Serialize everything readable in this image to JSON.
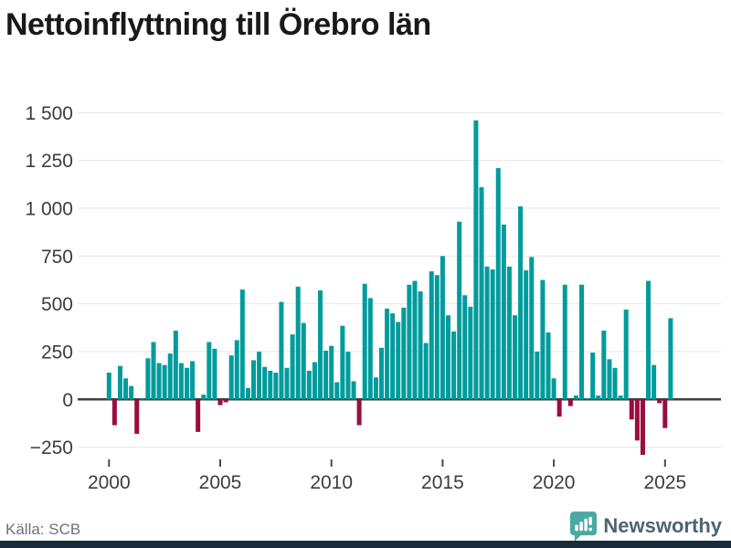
{
  "title": "Nettoinflyttning till Örebro län",
  "footer": {
    "source": "Källa: SCB",
    "brand": "Newsworthy"
  },
  "colors": {
    "bar_positive": "#009b9c",
    "bar_negative": "#9b0c3f",
    "grid": "#e4e4e4",
    "zero_line": "#3f3f3f",
    "title_text": "#191919",
    "axis_text": "#3c3c3c",
    "source_text": "#71717c",
    "brand_text": "#4d6570",
    "brand_icon": "#4ba8a2",
    "footer_bar": "#1a2b3b"
  },
  "chart_data": {
    "type": "bar",
    "title": "Nettoinflyttning till Örebro län",
    "xlabel": "",
    "ylabel": "",
    "frequency": "quarterly",
    "x_start": "2000-Q1",
    "x_end": "2025-Q2",
    "values": [
      140,
      -135,
      175,
      110,
      70,
      -180,
      5,
      215,
      300,
      190,
      180,
      240,
      360,
      190,
      165,
      200,
      -170,
      25,
      300,
      265,
      -30,
      -15,
      230,
      310,
      575,
      60,
      205,
      250,
      170,
      150,
      140,
      510,
      165,
      340,
      590,
      400,
      150,
      195,
      570,
      255,
      280,
      90,
      385,
      250,
      95,
      -135,
      605,
      530,
      115,
      270,
      475,
      450,
      405,
      480,
      600,
      620,
      565,
      295,
      670,
      650,
      750,
      440,
      355,
      930,
      545,
      485,
      1460,
      1110,
      695,
      680,
      1210,
      915,
      695,
      440,
      1010,
      675,
      745,
      250,
      625,
      350,
      110,
      -90,
      600,
      -35,
      20,
      600,
      5,
      245,
      20,
      360,
      210,
      165,
      20,
      470,
      -105,
      -215,
      -290,
      620,
      180,
      -20,
      -150,
      425
    ],
    "yticks": [
      1500,
      1250,
      1000,
      750,
      500,
      250,
      0,
      -250
    ],
    "ytick_labels": [
      "1 500",
      "1 250",
      "1 000",
      "750",
      "500",
      "250",
      "0",
      "−250"
    ],
    "xticks": [
      2000,
      2005,
      2010,
      2015,
      2020,
      2025
    ],
    "ylim": [
      -310,
      1560
    ],
    "grid": true,
    "legend": "none"
  }
}
